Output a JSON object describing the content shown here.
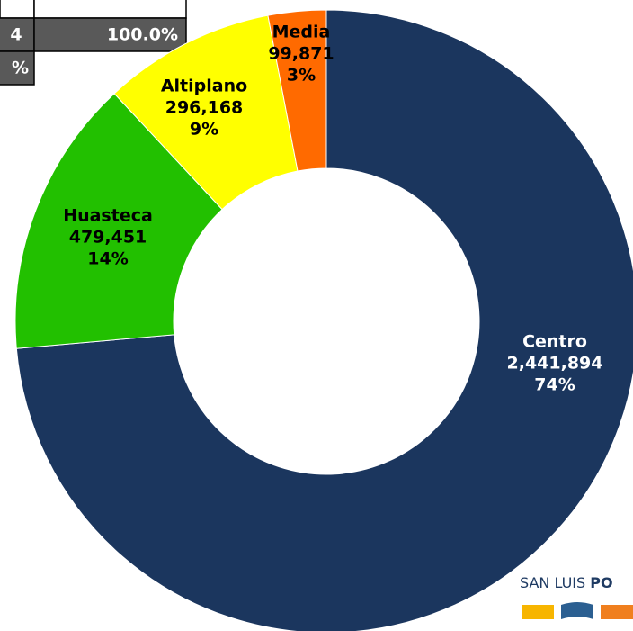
{
  "chart_data": {
    "type": "donut",
    "categories": [
      "Centro",
      "Huasteca",
      "Altiplano",
      "Media"
    ],
    "values": [
      2441894,
      479451,
      296168,
      99871
    ],
    "value_labels": [
      "2,441,894",
      "479,451",
      "296,168",
      "99,871"
    ],
    "percent_labels": [
      "74%",
      "14%",
      "9%",
      "3%"
    ],
    "colors": [
      "#1b365e",
      "#22c000",
      "#ffff00",
      "#ff6a00"
    ],
    "label_colors": [
      "#ffffff",
      "#000000",
      "#000000",
      "#000000"
    ]
  },
  "table": {
    "rows": [
      [
        "4",
        "100.0%"
      ],
      [
        "%"
      ]
    ]
  },
  "logo": {
    "text_regular": "SAN LUIS ",
    "text_bold": "PO"
  }
}
